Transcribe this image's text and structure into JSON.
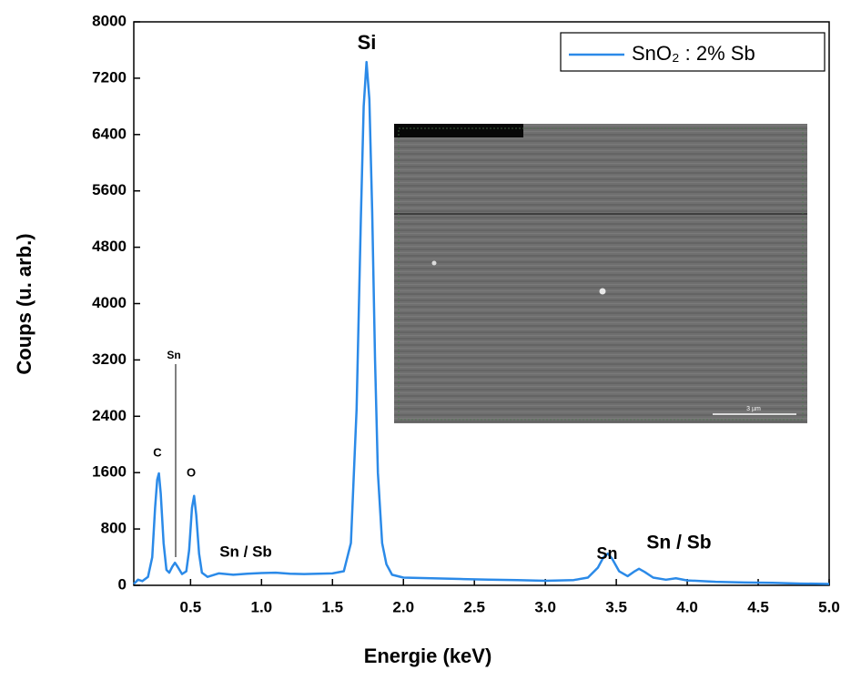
{
  "chart_data": {
    "type": "line",
    "xlabel": "Energie (keV)",
    "ylabel": "Coups (u. arb.)",
    "xlim": [
      0.1,
      5.0
    ],
    "ylim": [
      0,
      8000
    ],
    "xticks": [
      0.5,
      {
        "value": 1,
        "label": "1.0"
      },
      1.5,
      {
        "value": 2,
        "label": "2.0"
      },
      2.5,
      {
        "value": 3,
        "label": "3.0"
      },
      3.5,
      {
        "value": 4,
        "label": "4.0"
      },
      4.5,
      {
        "value": 5,
        "label": "5.0"
      }
    ],
    "yticks": [
      0,
      800,
      1600,
      2400,
      3200,
      4000,
      4800,
      5600,
      6400,
      7200,
      8000
    ],
    "legend": "upper right",
    "x": [
      0.1,
      0.13,
      0.16,
      0.2,
      0.23,
      0.25,
      0.265,
      0.277,
      0.29,
      0.31,
      0.33,
      0.35,
      0.37,
      0.39,
      0.41,
      0.44,
      0.47,
      0.49,
      0.51,
      0.525,
      0.54,
      0.56,
      0.58,
      0.62,
      0.7,
      0.8,
      0.9,
      1.0,
      1.1,
      1.2,
      1.3,
      1.4,
      1.5,
      1.58,
      1.63,
      1.67,
      1.7,
      1.72,
      1.74,
      1.76,
      1.78,
      1.8,
      1.82,
      1.85,
      1.88,
      1.92,
      2.0,
      2.2,
      2.4,
      2.6,
      2.8,
      3.0,
      3.2,
      3.3,
      3.37,
      3.41,
      3.44,
      3.47,
      3.52,
      3.58,
      3.63,
      3.66,
      3.7,
      3.76,
      3.85,
      3.92,
      4.0,
      4.2,
      4.4,
      4.6,
      4.8,
      5.0
    ],
    "series": [
      {
        "name": "SnO₂ : 2% Sb",
        "color": "#2b8ae8",
        "values": [
          20,
          80,
          60,
          120,
          400,
          1100,
          1500,
          1590,
          1300,
          600,
          220,
          180,
          260,
          320,
          260,
          160,
          200,
          500,
          1100,
          1270,
          1000,
          450,
          180,
          120,
          170,
          150,
          165,
          175,
          180,
          165,
          160,
          165,
          170,
          200,
          600,
          2500,
          5200,
          6800,
          7430,
          6900,
          5300,
          3200,
          1600,
          600,
          300,
          150,
          110,
          100,
          90,
          80,
          75,
          65,
          75,
          110,
          250,
          400,
          450,
          380,
          200,
          130,
          200,
          235,
          190,
          110,
          80,
          100,
          70,
          50,
          40,
          35,
          25,
          20
        ]
      }
    ],
    "annotations": [
      "Si",
      "C",
      "Sn",
      "O",
      "Sn / Sb",
      "Sn",
      "Sn / Sb"
    ],
    "inset_scale": "3 µm"
  }
}
